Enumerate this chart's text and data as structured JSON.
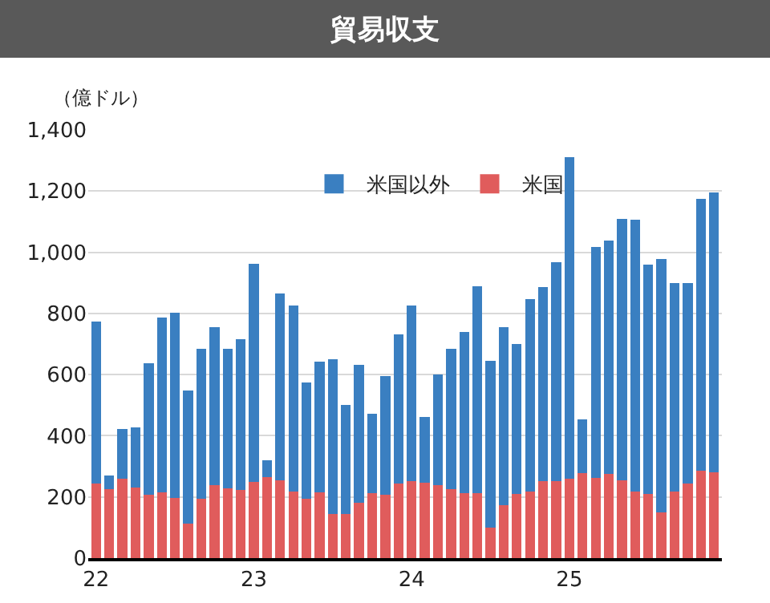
{
  "chart_data": {
    "type": "bar",
    "title": "貿易収支",
    "ylabel": "（億ドル）",
    "stacked": true,
    "categories": [
      "22",
      null,
      null,
      null,
      null,
      null,
      null,
      null,
      null,
      null,
      null,
      null,
      "23",
      null,
      null,
      null,
      null,
      null,
      null,
      null,
      null,
      null,
      null,
      null,
      "24",
      null,
      null,
      null,
      null,
      null,
      null,
      null,
      null,
      null,
      null,
      null,
      "25",
      null,
      null,
      null,
      null,
      null,
      null,
      null,
      null,
      null,
      null,
      null
    ],
    "series": [
      {
        "name": "米国",
        "color": "#e05c5c",
        "values": [
          245,
          225,
          259,
          232,
          206,
          215,
          196,
          114,
          194,
          239,
          227,
          222,
          248,
          266,
          255,
          217,
          194,
          215,
          143,
          143,
          182,
          212,
          208,
          245,
          252,
          246,
          238,
          225,
          213,
          213,
          100,
          173,
          210,
          217,
          252,
          252,
          259,
          278,
          262,
          276,
          255,
          217,
          210,
          150,
          217,
          243,
          287,
          280
        ]
      },
      {
        "name": "米国以外",
        "color": "#3a7fc1",
        "values": [
          528,
          44,
          162,
          195,
          432,
          572,
          606,
          433,
          491,
          516,
          458,
          493,
          713,
          54,
          610,
          610,
          381,
          428,
          507,
          357,
          449,
          260,
          388,
          486,
          573,
          215,
          363,
          460,
          526,
          677,
          545,
          582,
          491,
          631,
          634,
          716,
          1052,
          175,
          755,
          762,
          855,
          889,
          750,
          827,
          683,
          657,
          888,
          916
        ]
      }
    ],
    "ylim": [
      0,
      1400
    ],
    "yticks": [
      0,
      200,
      400,
      600,
      800,
      {
        "value": 1000,
        "label": "1,000"
      },
      {
        "value": 1200,
        "label": "1,200"
      },
      {
        "value": 1400,
        "label": "1,400"
      }
    ],
    "grid": "y",
    "legend": "top"
  }
}
